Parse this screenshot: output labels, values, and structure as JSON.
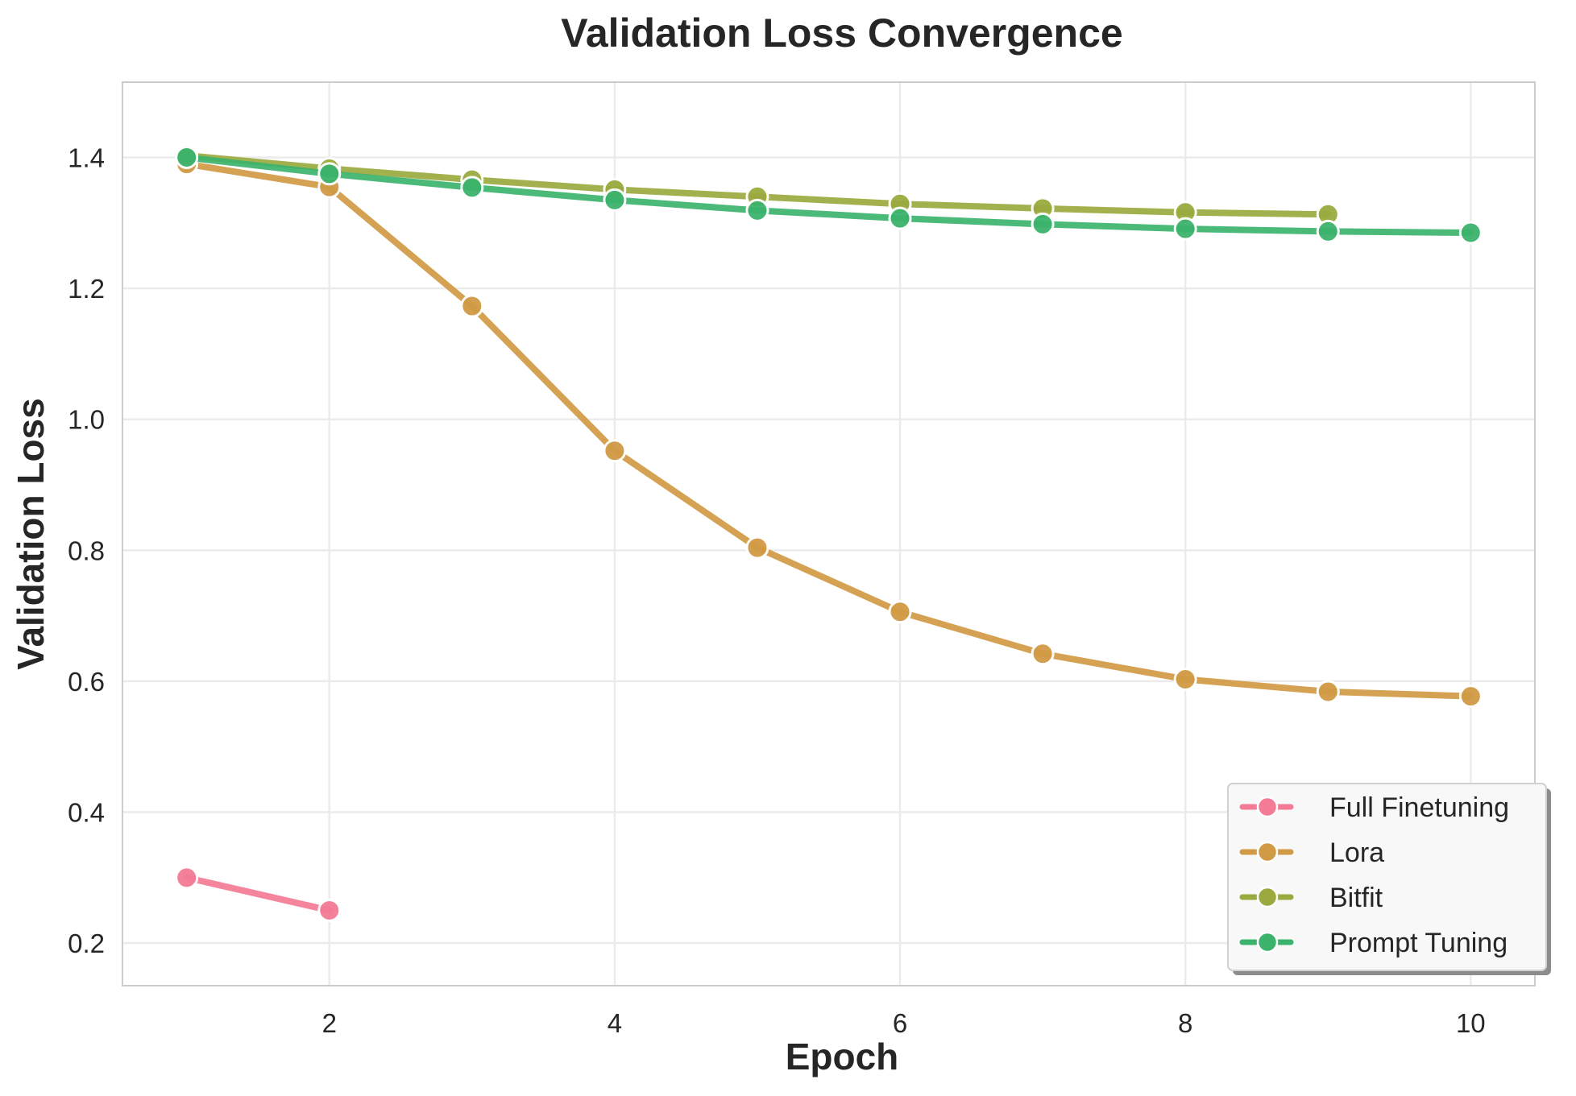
{
  "chart_data": {
    "type": "line",
    "title": "Validation Loss Convergence",
    "xlabel": "Epoch",
    "ylabel": "Validation Loss",
    "xlim": [
      0.55,
      10.45
    ],
    "ylim": [
      0.135,
      1.515
    ],
    "xticks": [
      "2",
      "4",
      "6",
      "8",
      "10"
    ],
    "yticks": [
      "0.2",
      "0.4",
      "0.6",
      "0.8",
      "1.0",
      "1.2",
      "1.4"
    ],
    "grid": true,
    "legend_position": "lower-right",
    "series": [
      {
        "name": "Full Finetuning",
        "color": "#f37b95",
        "x": [
          1,
          2
        ],
        "y": [
          0.3,
          0.25
        ]
      },
      {
        "name": "Lora",
        "color": "#d19a45",
        "x": [
          1,
          2,
          3,
          4,
          5,
          6,
          7,
          8,
          9,
          10
        ],
        "y": [
          1.39,
          1.355,
          1.173,
          0.952,
          0.804,
          0.706,
          0.642,
          0.603,
          0.584,
          0.577
        ]
      },
      {
        "name": "Bitfit",
        "color": "#9aaa3e",
        "x": [
          1,
          2,
          3,
          4,
          5,
          6,
          7,
          8,
          9
        ],
        "y": [
          1.403,
          1.383,
          1.366,
          1.351,
          1.34,
          1.329,
          1.322,
          1.316,
          1.313
        ]
      },
      {
        "name": "Prompt Tuning",
        "color": "#3cb36c",
        "x": [
          1,
          2,
          3,
          4,
          5,
          6,
          7,
          8,
          9,
          10
        ],
        "y": [
          1.4,
          1.375,
          1.354,
          1.335,
          1.319,
          1.307,
          1.298,
          1.291,
          1.287,
          1.285
        ]
      }
    ]
  }
}
